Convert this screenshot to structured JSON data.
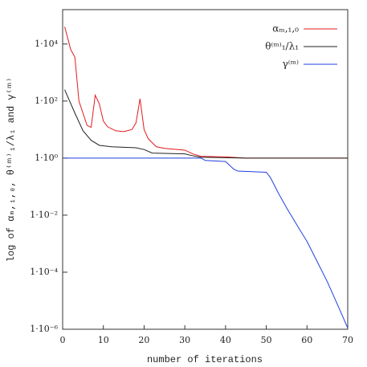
{
  "chart_data": {
    "type": "line",
    "x_label": "number of iterations",
    "y_label": "log of αₘ,₁,₀, θ⁽ᵐ⁾₁/λ₁ and γ⁽ᵐ⁾",
    "log_y": true,
    "legend": "upper right",
    "xlim": [
      0,
      70
    ],
    "xticks": [
      0,
      10,
      20,
      30,
      40,
      50,
      60,
      70
    ],
    "ylim": [
      1e-06,
      160000
    ],
    "yticks": [
      {
        "value": 1e-06,
        "label": "1·10⁻⁶"
      },
      {
        "value": 0.0001,
        "label": "1·10⁻⁴"
      },
      {
        "value": 0.01,
        "label": "1·10⁻²"
      },
      {
        "value": 1,
        "label": "1·10⁰"
      },
      {
        "value": 100,
        "label": "1·10²"
      },
      {
        "value": 10000,
        "label": "1·10⁴"
      }
    ],
    "series": [
      {
        "name": "αₘ,₁,₀",
        "color": "#e41a1c",
        "x": [
          0.5,
          2,
          3,
          4,
          6,
          7,
          8,
          9,
          10,
          11,
          13,
          15,
          17,
          18,
          19,
          20,
          21,
          23,
          25,
          30,
          32,
          34,
          40,
          45,
          70
        ],
        "values": [
          40000,
          6300,
          3500,
          100,
          14,
          12,
          160,
          80,
          20,
          12.6,
          9.1,
          8.5,
          10,
          17,
          120,
          10,
          4.8,
          2.5,
          2.2,
          1.9,
          1.4,
          1.15,
          1.1,
          1.0,
          1.0
        ]
      },
      {
        "name": "θ⁽ᵐ⁾₁/λ₁",
        "color": "#222222",
        "x": [
          0.5,
          3,
          5,
          7,
          9,
          12,
          18,
          20,
          22,
          30,
          32,
          34,
          45,
          70
        ],
        "values": [
          250,
          38,
          9.1,
          4.2,
          2.8,
          2.5,
          2.3,
          2.0,
          1.5,
          1.4,
          1.2,
          1.07,
          1.0,
          1.0
        ]
      },
      {
        "name": "γ⁽ᵐ⁾",
        "color": "#1f3fe0",
        "x": [
          0.5,
          34,
          35,
          40,
          42,
          43,
          50,
          51,
          53,
          55,
          58,
          60,
          63,
          65,
          68,
          70
        ],
        "values": [
          1,
          1,
          0.83,
          0.76,
          0.41,
          0.35,
          0.32,
          0.21,
          0.058,
          0.018,
          0.0035,
          0.0012,
          0.00017,
          4.6e-05,
          5e-06,
          1.1e-06
        ]
      }
    ]
  }
}
